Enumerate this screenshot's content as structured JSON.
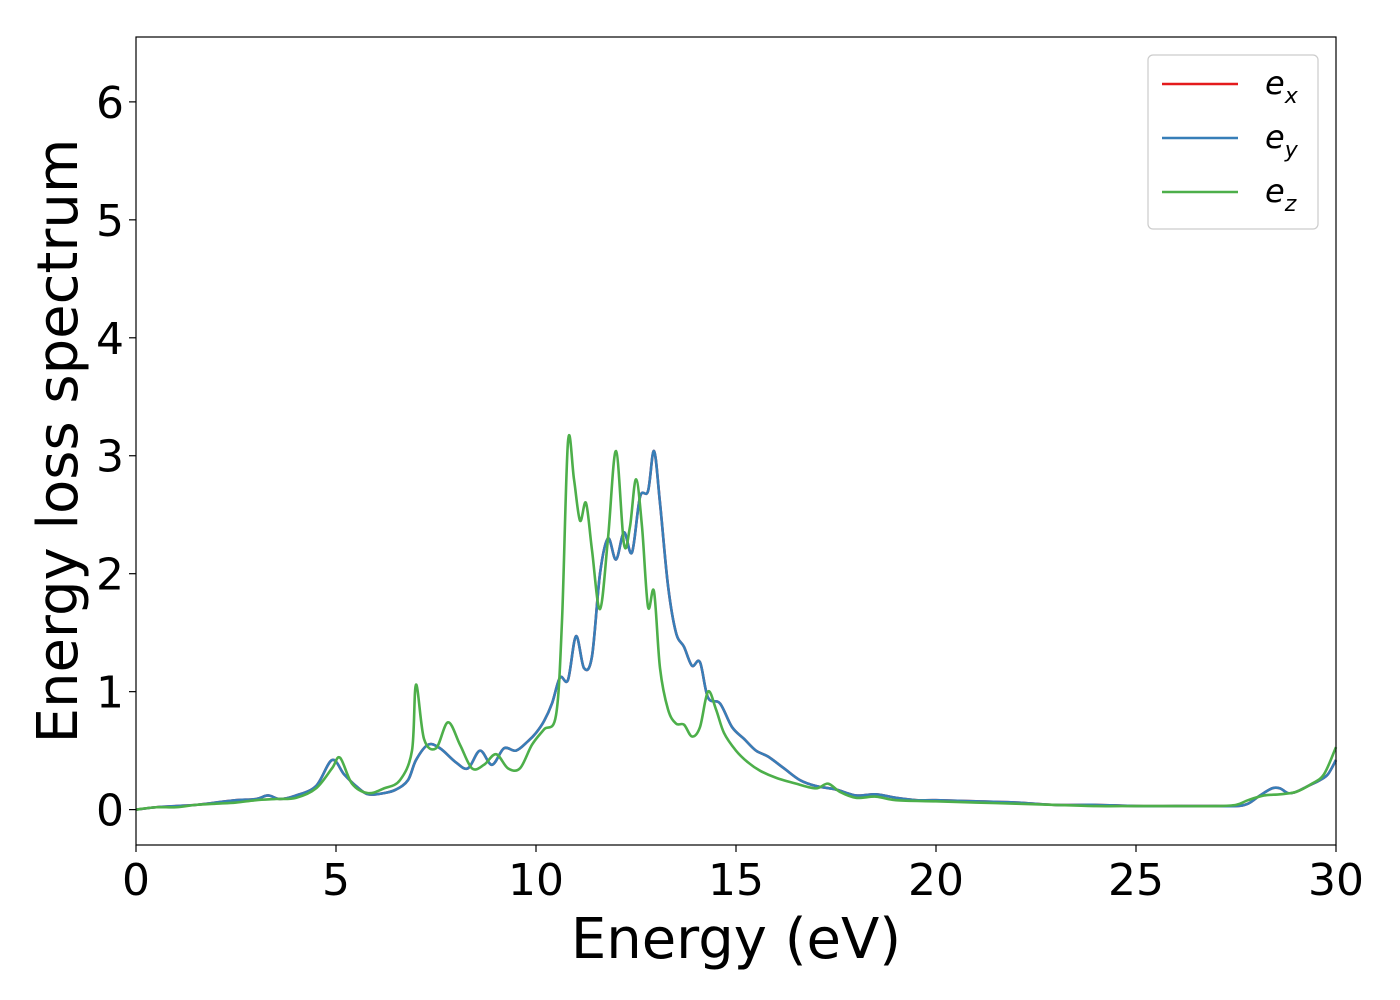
{
  "chart_data": {
    "type": "line",
    "xlabel": "Energy (eV)",
    "ylabel": "Energy loss spectrum",
    "xlim": [
      0,
      30
    ],
    "ylim": [
      -0.3,
      6.55
    ],
    "xticks": [
      0,
      5,
      10,
      15,
      20,
      25,
      30
    ],
    "yticks": [
      0,
      1,
      2,
      3,
      4,
      5,
      6
    ],
    "grid": false,
    "legend_position": "top-right",
    "series": [
      {
        "name": "e_x",
        "legend_base": "e",
        "legend_sub": "x",
        "color": "#e41a1c",
        "x": [
          0,
          0.5,
          1,
          1.5,
          2,
          2.5,
          3,
          3.3,
          3.6,
          4,
          4.5,
          4.9,
          5.2,
          5.5,
          5.8,
          6.2,
          6.5,
          6.8,
          7,
          7.3,
          7.6,
          8,
          8.3,
          8.6,
          8.9,
          9.2,
          9.5,
          9.8,
          10,
          10.2,
          10.4,
          10.6,
          10.8,
          11,
          11.2,
          11.4,
          11.6,
          11.8,
          12,
          12.2,
          12.4,
          12.6,
          12.8,
          12.95,
          13.1,
          13.3,
          13.5,
          13.7,
          13.9,
          14.1,
          14.3,
          14.6,
          14.9,
          15.2,
          15.5,
          15.8,
          16.2,
          16.6,
          17,
          17.5,
          18,
          18.5,
          19,
          19.5,
          20,
          21,
          22,
          23,
          24,
          25,
          26,
          27,
          27.5,
          27.8,
          28.1,
          28.4,
          28.6,
          28.8,
          29,
          29.3,
          29.6,
          29.8,
          30
        ],
        "y": [
          0.0,
          0.02,
          0.03,
          0.04,
          0.06,
          0.08,
          0.09,
          0.12,
          0.09,
          0.12,
          0.2,
          0.42,
          0.3,
          0.2,
          0.13,
          0.14,
          0.17,
          0.25,
          0.42,
          0.55,
          0.52,
          0.4,
          0.35,
          0.5,
          0.38,
          0.52,
          0.5,
          0.58,
          0.65,
          0.75,
          0.9,
          1.12,
          1.1,
          1.47,
          1.2,
          1.3,
          2.0,
          2.3,
          2.12,
          2.35,
          2.18,
          2.65,
          2.7,
          3.04,
          2.6,
          1.9,
          1.5,
          1.38,
          1.22,
          1.25,
          0.95,
          0.9,
          0.7,
          0.6,
          0.5,
          0.45,
          0.35,
          0.25,
          0.2,
          0.17,
          0.12,
          0.13,
          0.1,
          0.08,
          0.08,
          0.07,
          0.06,
          0.04,
          0.04,
          0.03,
          0.03,
          0.03,
          0.03,
          0.05,
          0.12,
          0.18,
          0.18,
          0.14,
          0.15,
          0.2,
          0.25,
          0.3,
          0.42
        ]
      },
      {
        "name": "e_y",
        "legend_base": "e",
        "legend_sub": "y",
        "color": "#377eb8",
        "x": [
          0,
          0.5,
          1,
          1.5,
          2,
          2.5,
          3,
          3.3,
          3.6,
          4,
          4.5,
          4.9,
          5.2,
          5.5,
          5.8,
          6.2,
          6.5,
          6.8,
          7,
          7.3,
          7.6,
          8,
          8.3,
          8.6,
          8.9,
          9.2,
          9.5,
          9.8,
          10,
          10.2,
          10.4,
          10.6,
          10.8,
          11,
          11.2,
          11.4,
          11.6,
          11.8,
          12,
          12.2,
          12.4,
          12.6,
          12.8,
          12.95,
          13.1,
          13.3,
          13.5,
          13.7,
          13.9,
          14.1,
          14.3,
          14.6,
          14.9,
          15.2,
          15.5,
          15.8,
          16.2,
          16.6,
          17,
          17.5,
          18,
          18.5,
          19,
          19.5,
          20,
          21,
          22,
          23,
          24,
          25,
          26,
          27,
          27.5,
          27.8,
          28.1,
          28.4,
          28.6,
          28.8,
          29,
          29.3,
          29.6,
          29.8,
          30
        ],
        "y": [
          0.0,
          0.02,
          0.03,
          0.04,
          0.06,
          0.08,
          0.09,
          0.12,
          0.09,
          0.12,
          0.2,
          0.42,
          0.3,
          0.2,
          0.13,
          0.14,
          0.17,
          0.25,
          0.42,
          0.55,
          0.52,
          0.4,
          0.35,
          0.5,
          0.38,
          0.52,
          0.5,
          0.58,
          0.65,
          0.75,
          0.9,
          1.12,
          1.1,
          1.47,
          1.2,
          1.3,
          2.0,
          2.3,
          2.12,
          2.35,
          2.18,
          2.65,
          2.7,
          3.04,
          2.6,
          1.9,
          1.5,
          1.38,
          1.22,
          1.25,
          0.95,
          0.9,
          0.7,
          0.6,
          0.5,
          0.45,
          0.35,
          0.25,
          0.2,
          0.17,
          0.12,
          0.13,
          0.1,
          0.08,
          0.08,
          0.07,
          0.06,
          0.04,
          0.04,
          0.03,
          0.03,
          0.03,
          0.03,
          0.05,
          0.12,
          0.18,
          0.18,
          0.14,
          0.15,
          0.2,
          0.25,
          0.3,
          0.42
        ]
      },
      {
        "name": "e_z",
        "legend_base": "e",
        "legend_sub": "z",
        "color": "#4daf4a",
        "x": [
          0,
          0.5,
          1,
          1.5,
          2,
          2.5,
          3,
          3.5,
          4,
          4.5,
          4.9,
          5.1,
          5.4,
          5.8,
          6.2,
          6.6,
          6.9,
          7.0,
          7.2,
          7.5,
          7.8,
          8.1,
          8.4,
          8.7,
          9.0,
          9.3,
          9.6,
          9.9,
          10.2,
          10.5,
          10.65,
          10.8,
          10.95,
          11.1,
          11.25,
          11.4,
          11.6,
          11.8,
          12.0,
          12.2,
          12.35,
          12.5,
          12.65,
          12.8,
          12.95,
          13.1,
          13.3,
          13.5,
          13.7,
          13.9,
          14.1,
          14.3,
          14.5,
          14.7,
          15.0,
          15.3,
          15.6,
          16.0,
          16.5,
          17.0,
          17.3,
          17.6,
          18.0,
          18.5,
          19,
          20,
          21,
          22,
          23,
          24,
          25,
          26,
          27,
          27.5,
          27.8,
          28.2,
          28.6,
          29.0,
          29.4,
          29.7,
          30
        ],
        "y": [
          0.0,
          0.02,
          0.02,
          0.04,
          0.05,
          0.06,
          0.08,
          0.09,
          0.1,
          0.18,
          0.35,
          0.44,
          0.22,
          0.14,
          0.18,
          0.25,
          0.5,
          1.06,
          0.6,
          0.52,
          0.74,
          0.55,
          0.35,
          0.38,
          0.47,
          0.35,
          0.35,
          0.55,
          0.68,
          0.8,
          1.6,
          3.12,
          2.8,
          2.45,
          2.6,
          2.2,
          1.7,
          2.3,
          3.04,
          2.25,
          2.4,
          2.8,
          2.4,
          1.72,
          1.85,
          1.2,
          0.85,
          0.73,
          0.72,
          0.62,
          0.7,
          1.0,
          0.85,
          0.65,
          0.5,
          0.4,
          0.33,
          0.27,
          0.22,
          0.18,
          0.22,
          0.15,
          0.1,
          0.11,
          0.08,
          0.07,
          0.06,
          0.05,
          0.04,
          0.03,
          0.03,
          0.03,
          0.03,
          0.04,
          0.08,
          0.12,
          0.13,
          0.15,
          0.22,
          0.3,
          0.53
        ]
      }
    ]
  }
}
